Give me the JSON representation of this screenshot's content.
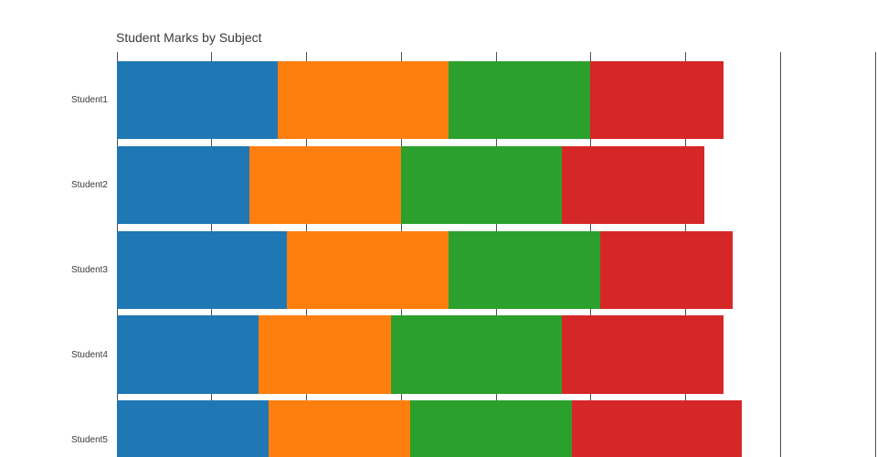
{
  "figure": {
    "background": "#ffffff"
  },
  "chart_data": {
    "type": "bar",
    "orientation": "horizontal",
    "stacked": true,
    "title": "Student Marks by Subject",
    "categories": [
      "Student1",
      "Student2",
      "Student3",
      "Student4",
      "Student5"
    ],
    "series": [
      {
        "name": "blue-segment",
        "color": "#1f77b4",
        "values": [
          85,
          70,
          90,
          75,
          80
        ]
      },
      {
        "name": "orange-segment",
        "color": "#ff7f0e",
        "values": [
          90,
          80,
          85,
          70,
          75
        ]
      },
      {
        "name": "green-segment",
        "color": "#2ca02c",
        "values": [
          75,
          85,
          80,
          90,
          85
        ]
      },
      {
        "name": "red-segment",
        "color": "#d62728",
        "values": [
          70,
          75,
          70,
          85,
          90
        ]
      }
    ],
    "stack_totals": [
      330,
      310,
      325,
      320,
      330
    ],
    "x_axis": {
      "min": 0,
      "max": 400,
      "grid_step": 50,
      "gridlines_at": [
        0,
        50,
        100,
        150,
        200,
        250,
        300,
        350,
        400
      ],
      "tick_labels_visible": false
    },
    "grid": {
      "visible": true,
      "color": "#4d4d4d"
    },
    "xlabel": "",
    "ylabel": "",
    "legend_visible": false
  }
}
